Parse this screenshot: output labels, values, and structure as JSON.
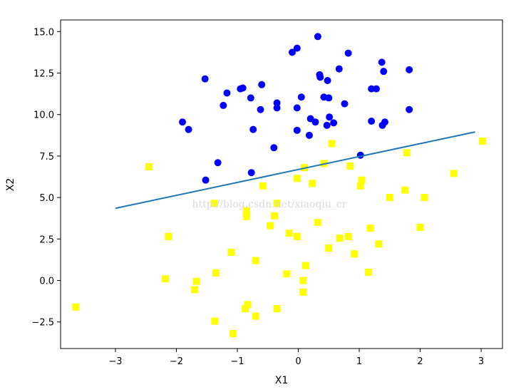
{
  "chart_data": {
    "type": "scatter",
    "title": "",
    "xlabel": "X1",
    "ylabel": "X2",
    "xlim": [
      -3.9,
      3.35
    ],
    "ylim": [
      -4.1,
      15.7
    ],
    "xticks": [
      -3,
      -2,
      -1,
      0,
      1,
      2,
      3
    ],
    "xtick_labels": [
      "−3",
      "−2",
      "−1",
      "0",
      "1",
      "2",
      "3"
    ],
    "yticks": [
      -2.5,
      0.0,
      2.5,
      5.0,
      7.5,
      10.0,
      12.5,
      15.0
    ],
    "ytick_labels": [
      "−2.5",
      "0.0",
      "2.5",
      "5.0",
      "7.5",
      "10.0",
      "12.5",
      "15.0"
    ],
    "grid": false,
    "watermark": "http://blog.csdn.net/xiaoqiu_cr",
    "series": [
      {
        "marker": "circle",
        "color": "#0000ff",
        "points": [
          [
            0.32,
            14.7
          ],
          [
            -0.1,
            13.75
          ],
          [
            -0.02,
            14.0
          ],
          [
            0.82,
            13.7
          ],
          [
            1.37,
            13.15
          ],
          [
            0.67,
            12.75
          ],
          [
            1.4,
            12.6
          ],
          [
            1.82,
            12.7
          ],
          [
            -1.53,
            12.15
          ],
          [
            0.35,
            12.4
          ],
          [
            0.36,
            12.25
          ],
          [
            0.48,
            12.05
          ],
          [
            -0.6,
            11.8
          ],
          [
            -0.95,
            11.55
          ],
          [
            -0.91,
            11.6
          ],
          [
            1.2,
            11.55
          ],
          [
            1.28,
            11.55
          ],
          [
            -1.17,
            11.3
          ],
          [
            -0.78,
            11.0
          ],
          [
            0.05,
            11.05
          ],
          [
            0.42,
            11.05
          ],
          [
            0.5,
            11.0
          ],
          [
            -0.35,
            10.7
          ],
          [
            0.76,
            10.65
          ],
          [
            -1.23,
            10.55
          ],
          [
            -0.35,
            10.4
          ],
          [
            -0.62,
            10.3
          ],
          [
            -0.02,
            10.4
          ],
          [
            1.82,
            10.3
          ],
          [
            0.51,
            9.85
          ],
          [
            0.2,
            9.75
          ],
          [
            0.28,
            9.55
          ],
          [
            0.58,
            9.5
          ],
          [
            1.2,
            9.6
          ],
          [
            1.42,
            9.55
          ],
          [
            1.38,
            9.35
          ],
          [
            0.47,
            9.35
          ],
          [
            -1.9,
            9.55
          ],
          [
            -1.8,
            9.1
          ],
          [
            -0.74,
            9.1
          ],
          [
            -0.02,
            9.05
          ],
          [
            0.18,
            8.75
          ],
          [
            -0.4,
            8.0
          ],
          [
            1.02,
            7.55
          ],
          [
            -1.32,
            7.1
          ],
          [
            -0.77,
            6.5
          ],
          [
            -1.52,
            6.05
          ]
        ]
      },
      {
        "marker": "square",
        "color": "#ffff00",
        "points": [
          [
            3.02,
            8.4
          ],
          [
            0.55,
            8.25
          ],
          [
            1.78,
            7.7
          ],
          [
            0.42,
            7.05
          ],
          [
            0.1,
            6.8
          ],
          [
            -2.45,
            6.85
          ],
          [
            0.85,
            6.9
          ],
          [
            2.55,
            6.45
          ],
          [
            -0.02,
            6.15
          ],
          [
            1.04,
            6.05
          ],
          [
            0.23,
            5.85
          ],
          [
            -0.58,
            5.7
          ],
          [
            1.02,
            5.7
          ],
          [
            1.75,
            5.45
          ],
          [
            1.5,
            5.0
          ],
          [
            2.07,
            5.0
          ],
          [
            -1.38,
            4.65
          ],
          [
            -0.35,
            4.65
          ],
          [
            -0.85,
            4.2
          ],
          [
            -0.85,
            3.85
          ],
          [
            -0.39,
            3.9
          ],
          [
            0.32,
            3.5
          ],
          [
            -0.46,
            3.3
          ],
          [
            1.18,
            3.15
          ],
          [
            2.0,
            3.2
          ],
          [
            -2.13,
            2.65
          ],
          [
            -0.15,
            2.85
          ],
          [
            -0.02,
            2.65
          ],
          [
            0.68,
            2.55
          ],
          [
            0.82,
            2.65
          ],
          [
            1.32,
            2.2
          ],
          [
            0.5,
            1.95
          ],
          [
            -1.1,
            1.7
          ],
          [
            0.92,
            1.6
          ],
          [
            -0.7,
            1.2
          ],
          [
            0.12,
            0.9
          ],
          [
            -1.35,
            0.45
          ],
          [
            -0.19,
            0.4
          ],
          [
            1.15,
            0.5
          ],
          [
            -2.18,
            0.1
          ],
          [
            -1.67,
            -0.05
          ],
          [
            0.08,
            0.0
          ],
          [
            -1.7,
            -0.55
          ],
          [
            0.08,
            -0.7
          ],
          [
            -0.83,
            -1.45
          ],
          [
            -0.87,
            -1.7
          ],
          [
            -0.35,
            -1.7
          ],
          [
            -3.65,
            -1.6
          ],
          [
            -0.7,
            -2.15
          ],
          [
            -1.37,
            -2.45
          ],
          [
            -1.07,
            -3.2
          ]
        ]
      }
    ],
    "lines": [
      {
        "color": "#1f77b4",
        "x": [
          -3.0,
          2.9
        ],
        "y": [
          4.35,
          8.95
        ]
      }
    ]
  }
}
